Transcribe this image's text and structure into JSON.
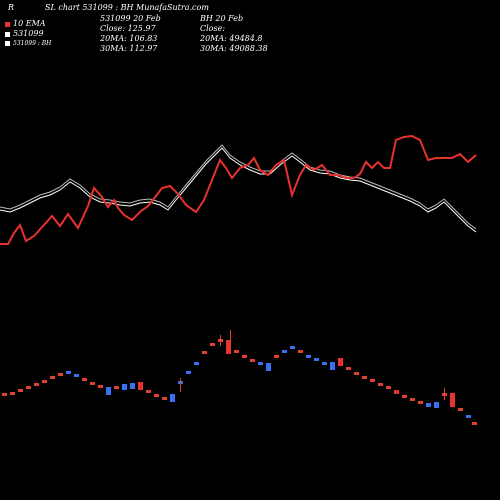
{
  "header": {
    "corner": "R",
    "title": "SL chart 531099 : BH MunafaSutra.com",
    "legend_main": "531099",
    "legend_sub": "531099 : BH",
    "legend_line1": "10",
    "legend_line2": "EMA",
    "info_col1": [
      "531099 20 Feb",
      "Close: 125.97",
      "20MA: 106.83",
      "30MA: 112.97"
    ],
    "info_col2": [
      "BH 20 Feb",
      "Close:",
      "20MA: 49484.8",
      "30MA: 49088.38"
    ]
  },
  "colors": {
    "background": "#000000",
    "price_line": "#e8322d",
    "index_line": "#ffffff",
    "candle_up": "#3a6ff0",
    "candle_down": "#e8322d",
    "candle_small": "#e04030"
  },
  "chart_data": {
    "type": "line",
    "series": [
      {
        "name": "531099",
        "values": [
          244,
          244,
          233,
          225,
          241,
          236,
          225,
          216,
          226,
          206,
          188,
          197,
          207,
          215,
          208,
          223,
          224,
          219,
          216,
          193,
          186,
          200,
          206,
          214,
          210,
          198,
          193,
          197,
          207,
          177,
          167,
          163,
          157,
          165,
          169,
          174,
          188,
          208,
          213,
          200,
          192,
          197,
          210,
          191,
          180,
          187,
          171,
          161,
          163,
          170,
          164,
          166,
          165,
          168,
          162,
          165,
          180,
          175,
          180,
          177,
          166,
          166,
          139,
          137,
          138,
          137,
          141,
          136,
          129,
          134,
          135,
          131,
          129,
          121,
          121,
          120,
          120,
          121,
          118,
          115,
          118,
          115,
          117,
          114,
          118,
          117,
          114,
          112,
          114,
          118,
          112,
          105,
          107,
          104,
          104,
          102,
          103,
          104,
          104,
          103,
          101,
          101,
          101,
          100,
          98,
          101,
          102,
          105,
          101,
          99,
          98,
          97,
          97,
          95,
          97,
          98,
          97,
          96,
          95,
          95,
          94,
          95,
          96,
          95,
          93,
          94,
          96,
          95,
          97,
          96,
          94,
          93,
          93,
          96,
          97,
          95,
          96,
          95,
          94,
          96,
          97,
          96,
          98,
          95,
          93,
          94,
          95,
          96,
          94,
          93,
          90,
          92,
          93,
          95,
          97,
          96,
          95,
          93,
          93,
          92,
          91,
          92,
          92,
          91,
          93,
          94,
          92,
          94,
          95,
          96,
          97,
          98,
          97,
          95,
          93,
          94,
          96,
          97,
          96,
          98,
          99,
          97,
          95,
          96,
          95,
          93,
          94,
          93,
          92,
          93,
          94,
          93,
          94,
          92,
          91,
          92,
          93,
          92,
          94,
          95,
          97,
          96,
          95,
          93,
          92,
          93,
          94,
          92,
          93,
          92,
          91,
          91,
          90,
          90,
          91,
          92,
          90,
          91,
          91,
          92,
          93,
          94,
          93,
          95,
          96,
          98,
          99,
          97,
          96,
          95,
          96,
          96,
          95,
          94,
          94,
          93,
          92,
          94,
          94,
          93,
          94,
          95,
          96,
          93,
          92,
          93,
          94,
          96,
          97,
          96,
          95,
          96,
          95,
          93
        ]
      },
      {
        "name": "BH",
        "values": [
          210,
          212,
          210,
          205,
          201,
          195,
          193,
          186,
          182,
          181
        ]
      }
    ],
    "candles_note": "price bars at bottom"
  }
}
